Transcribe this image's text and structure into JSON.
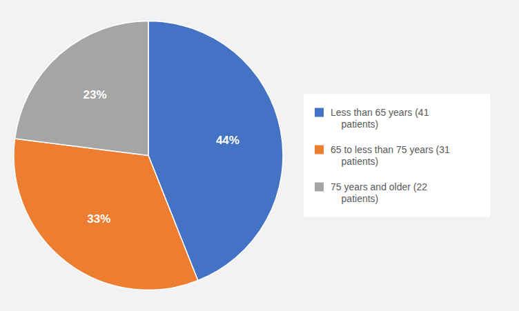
{
  "chart_data": {
    "type": "pie",
    "categories": [
      "Less than 65 years (41\n    patients)",
      "65 to less than 75 years (31\n    patients)",
      "75 years and older (22\n    patients)"
    ],
    "values": [
      44,
      33,
      23
    ],
    "value_labels": [
      "44%",
      "33%",
      "23%"
    ],
    "colors": [
      "#4472C4",
      "#ED7D31",
      "#A5A5A5"
    ],
    "data_labels": true,
    "legend": "right"
  }
}
